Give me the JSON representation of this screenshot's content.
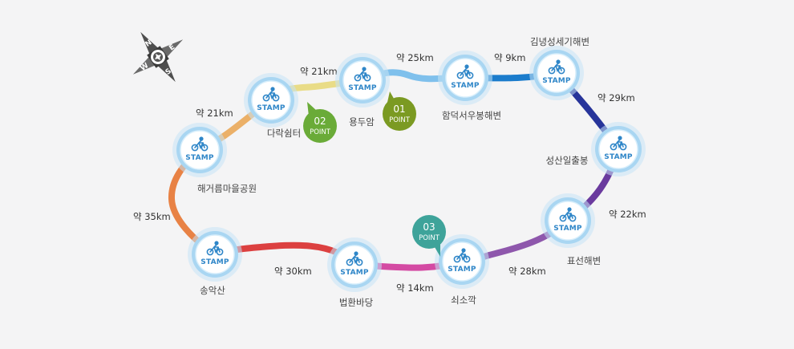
{
  "stamp_word": "STAMP",
  "stations": [
    {
      "id": "darak",
      "label": "다락쉼터"
    },
    {
      "id": "yongduam",
      "label": "용두암"
    },
    {
      "id": "hamdeok",
      "label": "함덕서우봉해변"
    },
    {
      "id": "gimnyeong",
      "label": "김녕성세기해변"
    },
    {
      "id": "seongsan",
      "label": "성산일출봉"
    },
    {
      "id": "pyoseon",
      "label": "표선해변"
    },
    {
      "id": "soesokkak",
      "label": "쇠소깍"
    },
    {
      "id": "beophwan",
      "label": "법환바당"
    },
    {
      "id": "songaksan",
      "label": "송악산"
    },
    {
      "id": "haegeorum",
      "label": "해거름마을공원"
    }
  ],
  "segments": [
    {
      "id": "darak-yongduam",
      "distance": "약 21km",
      "color": "#e9dc87"
    },
    {
      "id": "yongduam-hamdeok",
      "distance": "약 25km",
      "color": "#7fc0ec"
    },
    {
      "id": "hamdeok-gimnyeong",
      "distance": "약 9km",
      "color": "#1b7ccc"
    },
    {
      "id": "gimnyeong-seongsan",
      "distance": "약 29km",
      "color": "#27349a"
    },
    {
      "id": "seongsan-pyoseon",
      "distance": "약 22km",
      "color": "#6a3a9e"
    },
    {
      "id": "pyoseon-soesokkak",
      "distance": "약 28km",
      "color": "#8e57ac"
    },
    {
      "id": "soesokkak-beophwan",
      "distance": "약 14km",
      "color": "#d44aa3"
    },
    {
      "id": "beophwan-songaksan",
      "distance": "약 30km",
      "color": "#dc4040"
    },
    {
      "id": "songaksan-haegeorum",
      "distance": "약 35km",
      "color": "#e88245"
    },
    {
      "id": "haegeorum-darak",
      "distance": "약 21km",
      "color": "#ebb068"
    }
  ],
  "points": [
    {
      "id": "point-01",
      "number": "01",
      "word": "POINT",
      "color": "#7b9a22"
    },
    {
      "id": "point-02",
      "number": "02",
      "word": "POINT",
      "color": "#6aab38"
    },
    {
      "id": "point-03",
      "number": "03",
      "word": "POINT",
      "color": "#3ea39a"
    }
  ],
  "compass": {
    "north": "N",
    "east": "E",
    "south": "S",
    "west": "W"
  },
  "colors": {
    "stamp_ring": "#a9d6f2",
    "stamp_inner": "#ffffff",
    "stamp_text": "#2f86c8",
    "background": "#f4f4f5"
  },
  "icons": {
    "stamp": "bicycle-icon",
    "compass": "compass-rose-icon"
  }
}
